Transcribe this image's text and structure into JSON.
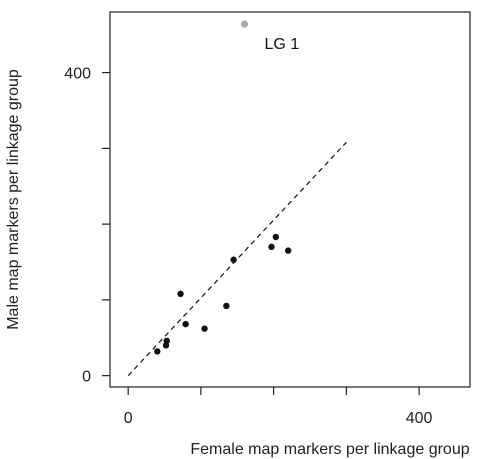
{
  "chart_data": {
    "type": "scatter",
    "xlabel": "Female map markers per linkage group",
    "ylabel": "Male map markers per linkage group",
    "xlim": [
      -25,
      470
    ],
    "ylim": [
      -15,
      480
    ],
    "x_ticks": [
      0,
      400
    ],
    "y_ticks": [
      0,
      400
    ],
    "x_tick_labels": [
      "0",
      "400"
    ],
    "y_tick_labels": [
      "0",
      "400"
    ],
    "x_minor_ticks": [
      100,
      200,
      300
    ],
    "y_minor_ticks": [
      100,
      200,
      300
    ],
    "reference_line": {
      "type": "dashed",
      "points": [
        [
          0,
          0
        ],
        [
          300,
          308
        ]
      ]
    },
    "points": [
      {
        "x": 40,
        "y": 32
      },
      {
        "x": 52,
        "y": 40
      },
      {
        "x": 53,
        "y": 46
      },
      {
        "x": 72,
        "y": 108
      },
      {
        "x": 79,
        "y": 68
      },
      {
        "x": 105,
        "y": 62
      },
      {
        "x": 135,
        "y": 92
      },
      {
        "x": 145,
        "y": 153
      },
      {
        "x": 197,
        "y": 170
      },
      {
        "x": 203,
        "y": 183
      },
      {
        "x": 220,
        "y": 165
      }
    ],
    "outlier": {
      "x": 160,
      "y": 464,
      "color": "#aaaaaa"
    },
    "annotation": {
      "text": "LG 1",
      "x": 160,
      "y": 464
    },
    "grid": false,
    "colors": {
      "point": "#111111",
      "outlier": "#aaaaaa",
      "axis": "#222222"
    }
  }
}
